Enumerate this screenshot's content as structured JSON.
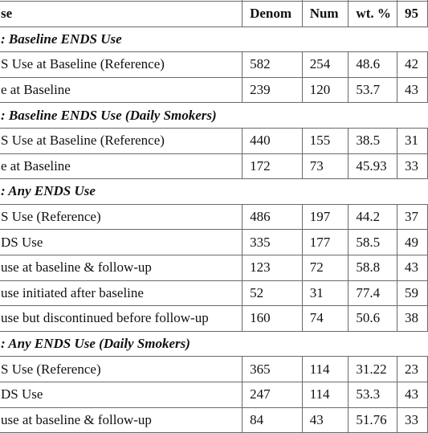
{
  "table": {
    "columns": [
      "se",
      "Denom",
      "Num",
      "wt. %",
      "95"
    ],
    "groups": [
      {
        "title_prefix": ": ",
        "title_italic": "Baseline ENDS Use",
        "rows": [
          {
            "label": "S Use at Baseline (Reference)",
            "denom": "582",
            "num": "254",
            "wt": "48.6",
            "ci": "42"
          },
          {
            "label": "e at Baseline",
            "denom": "239",
            "num": "120",
            "wt": "53.7",
            "ci": "43"
          }
        ]
      },
      {
        "title_prefix": ": ",
        "title_italic": "Baseline ENDS Use (Daily Smokers)",
        "rows": [
          {
            "label": "S Use at Baseline (Reference)",
            "denom": "440",
            "num": "155",
            "wt": "38.5",
            "ci": "31"
          },
          {
            "label": "e at Baseline",
            "denom": "172",
            "num": "73",
            "wt": "45.93",
            "ci": "33"
          }
        ]
      },
      {
        "title_prefix": ": ",
        "title_italic": "Any ENDS Use",
        "rows": [
          {
            "label": "S Use (Reference)",
            "denom": "486",
            "num": "197",
            "wt": "44.2",
            "ci": "37"
          },
          {
            "label": "DS Use",
            "denom": "335",
            "num": "177",
            "wt": "58.5",
            "ci": "49"
          },
          {
            "label": "use at baseline & follow-up",
            "denom": "123",
            "num": "72",
            "wt": "58.8",
            "ci": "43"
          },
          {
            "label": "use initiated after baseline",
            "denom": "52",
            "num": "31",
            "wt": "77.4",
            "ci": "59"
          },
          {
            "label": "use but discontinued before follow-up",
            "denom": "160",
            "num": "74",
            "wt": "50.6",
            "ci": "38"
          }
        ]
      },
      {
        "title_prefix": ": ",
        "title_italic": "Any ENDS Use (Daily Smokers)",
        "rows": [
          {
            "label": "S Use (Reference)",
            "denom": "365",
            "num": "114",
            "wt": "31.22",
            "ci": "23"
          },
          {
            "label": "DS Use",
            "denom": "247",
            "num": "114",
            "wt": "53.3",
            "ci": "43"
          },
          {
            "label": "use at baseline & follow-up",
            "denom": "84",
            "num": "43",
            "wt": "51.76",
            "ci": "33"
          }
        ]
      }
    ]
  }
}
